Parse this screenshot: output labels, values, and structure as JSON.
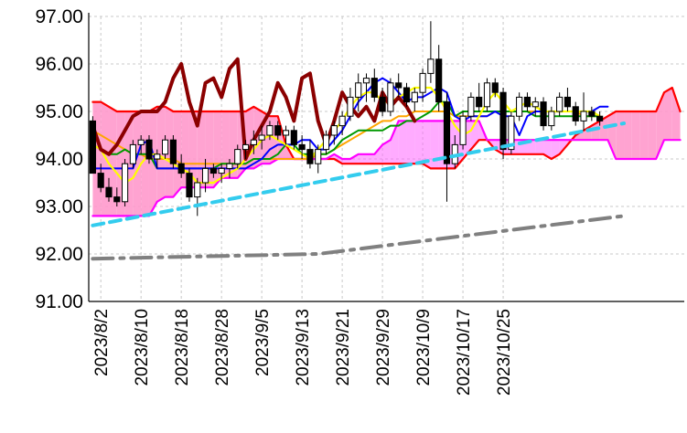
{
  "chart_data": {
    "type": "candlestick",
    "title": "",
    "xlabel": "",
    "ylabel": "",
    "ylim": [
      91.0,
      97.0
    ],
    "grid": true,
    "y_ticks": [
      "97.00",
      "96.00",
      "95.00",
      "94.00",
      "93.00",
      "92.00",
      "91.00"
    ],
    "x_ticks": [
      "2023/8/2",
      "2023/8/10",
      "2023/8/18",
      "2023/8/28",
      "2023/9/5",
      "2023/9/13",
      "2023/9/21",
      "2023/9/29",
      "2023/10/9",
      "2023/10/17",
      "2023/10/25"
    ],
    "colors": {
      "grid": "#c8c8c8",
      "axis": "#000000",
      "cloud_bull_fill": "#ff99cc",
      "cloud_bear_fill": "#ff66ff",
      "span_a": "#ff0000",
      "span_b": "#ff00ff",
      "lagging": "#8b0000",
      "conversion": "#0000ff",
      "base": "#009900",
      "short_ma": "#ffff00",
      "long_ma": "#ffa500",
      "trend_cyan": "#33ccee",
      "trend_gray": "#808080",
      "bull_candle": "#ffffff",
      "bear_candle": "#000000"
    },
    "candles_ohlc": [
      [
        94.8,
        94.9,
        93.7,
        93.7
      ],
      [
        93.7,
        93.9,
        93.3,
        93.4
      ],
      [
        93.4,
        93.6,
        93.1,
        93.2
      ],
      [
        93.2,
        93.4,
        93.0,
        93.1
      ],
      [
        93.1,
        94.0,
        93.0,
        93.9
      ],
      [
        93.9,
        94.4,
        93.8,
        94.3
      ],
      [
        94.3,
        94.5,
        94.1,
        94.4
      ],
      [
        94.4,
        94.5,
        93.9,
        94.0
      ],
      [
        94.0,
        94.2,
        93.8,
        94.1
      ],
      [
        94.1,
        94.5,
        94.0,
        94.4
      ],
      [
        94.4,
        94.5,
        93.8,
        93.9
      ],
      [
        93.9,
        94.1,
        93.6,
        93.7
      ],
      [
        93.7,
        93.8,
        93.1,
        93.2
      ],
      [
        93.2,
        93.6,
        92.8,
        93.5
      ],
      [
        93.5,
        94.0,
        93.3,
        93.8
      ],
      [
        93.8,
        93.9,
        93.6,
        93.7
      ],
      [
        93.7,
        93.9,
        93.5,
        93.8
      ],
      [
        93.8,
        94.0,
        93.6,
        93.9
      ],
      [
        93.9,
        94.3,
        93.8,
        94.2
      ],
      [
        94.2,
        94.4,
        94.0,
        94.3
      ],
      [
        94.3,
        94.6,
        94.1,
        94.4
      ],
      [
        94.4,
        94.7,
        94.2,
        94.5
      ],
      [
        94.5,
        94.8,
        94.4,
        94.7
      ],
      [
        94.7,
        94.8,
        94.4,
        94.5
      ],
      [
        94.5,
        94.7,
        94.3,
        94.6
      ],
      [
        94.6,
        94.7,
        94.2,
        94.3
      ],
      [
        94.3,
        94.5,
        94.0,
        94.2
      ],
      [
        94.2,
        94.4,
        93.8,
        93.9
      ],
      [
        93.9,
        94.3,
        93.7,
        94.2
      ],
      [
        94.2,
        94.6,
        94.1,
        94.5
      ],
      [
        94.5,
        94.8,
        94.3,
        94.7
      ],
      [
        94.7,
        95.0,
        94.5,
        94.9
      ],
      [
        94.9,
        95.5,
        94.8,
        95.3
      ],
      [
        95.3,
        95.8,
        95.0,
        95.6
      ],
      [
        95.6,
        95.8,
        95.2,
        95.7
      ],
      [
        95.7,
        95.9,
        95.2,
        95.3
      ],
      [
        95.3,
        95.5,
        94.9,
        95.0
      ],
      [
        95.0,
        95.7,
        94.9,
        95.6
      ],
      [
        95.6,
        95.8,
        95.3,
        95.5
      ],
      [
        95.5,
        95.6,
        95.1,
        95.2
      ],
      [
        95.2,
        95.5,
        95.0,
        95.4
      ],
      [
        95.4,
        95.9,
        95.2,
        95.8
      ],
      [
        95.8,
        96.9,
        95.6,
        96.1
      ],
      [
        96.1,
        96.4,
        95.0,
        95.2
      ],
      [
        95.2,
        95.4,
        93.1,
        93.9
      ],
      [
        93.9,
        94.5,
        93.8,
        94.3
      ],
      [
        94.3,
        95.0,
        94.2,
        94.9
      ],
      [
        94.9,
        95.4,
        94.8,
        95.3
      ],
      [
        95.3,
        95.6,
        95.0,
        95.1
      ],
      [
        95.1,
        95.7,
        95.0,
        95.6
      ],
      [
        95.6,
        95.7,
        95.3,
        95.4
      ],
      [
        95.4,
        95.5,
        94.0,
        94.2
      ],
      [
        94.2,
        95.0,
        94.1,
        94.9
      ],
      [
        94.9,
        95.4,
        94.8,
        95.3
      ],
      [
        95.3,
        95.4,
        95.0,
        95.1
      ],
      [
        95.1,
        95.3,
        94.9,
        95.2
      ],
      [
        95.2,
        95.3,
        94.6,
        94.7
      ],
      [
        94.7,
        95.1,
        94.6,
        95.0
      ],
      [
        95.0,
        95.4,
        94.9,
        95.3
      ],
      [
        95.3,
        95.5,
        95.0,
        95.1
      ],
      [
        95.1,
        95.2,
        94.7,
        94.8
      ],
      [
        94.8,
        95.4,
        94.6,
        95.0
      ],
      [
        95.0,
        95.1,
        94.8,
        94.9
      ],
      [
        94.9,
        95.0,
        94.7,
        94.8
      ]
    ],
    "series": [
      {
        "key": "span_a",
        "start": 0,
        "values": [
          95.2,
          95.2,
          95.1,
          95.0,
          95.0,
          95.0,
          95.0,
          95.0,
          95.1,
          95.1,
          95.0,
          95.0,
          95.0,
          95.0,
          95.0,
          95.0,
          95.0,
          95.0,
          95.0,
          95.0,
          95.1,
          95.0,
          94.9,
          94.9,
          94.3,
          94.0,
          94.0,
          94.0,
          94.0,
          94.0,
          94.0,
          93.9,
          93.9,
          93.9,
          93.9,
          93.9,
          93.9,
          93.9,
          93.9,
          93.9,
          93.9,
          93.9,
          93.8,
          93.8,
          93.8,
          93.8,
          94.0,
          94.2,
          94.4,
          94.4,
          94.2,
          94.1,
          94.1,
          94.1,
          94.1,
          94.1,
          94.1,
          94.0,
          94.1,
          94.3,
          94.5,
          94.6,
          94.7,
          94.8,
          94.9,
          95.0,
          95.0,
          95.0,
          95.0,
          95.0,
          95.0,
          95.4,
          95.5,
          95.0
        ]
      },
      {
        "key": "span_b",
        "start": 0,
        "values": [
          92.8,
          92.8,
          92.8,
          92.8,
          92.8,
          92.8,
          92.8,
          92.8,
          93.1,
          93.2,
          93.2,
          93.4,
          93.4,
          93.4,
          93.4,
          93.4,
          93.6,
          93.6,
          93.6,
          93.8,
          93.8,
          93.9,
          93.9,
          94.0,
          94.0,
          94.0,
          94.0,
          94.0,
          94.0,
          94.0,
          94.1,
          94.0,
          94.0,
          94.1,
          94.1,
          94.1,
          94.3,
          94.4,
          94.8,
          94.8,
          94.8,
          94.8,
          94.8,
          94.8,
          94.8,
          94.8,
          94.8,
          94.8,
          94.8,
          94.4,
          94.4,
          94.4,
          94.4,
          94.4,
          94.4,
          94.4,
          94.4,
          94.4,
          94.4,
          94.4,
          94.4,
          94.4,
          94.4,
          94.4,
          94.4,
          94.0,
          94.0,
          94.0,
          94.0,
          94.0,
          94.0,
          94.4,
          94.4,
          94.4
        ]
      },
      {
        "key": "lagging",
        "start": 0,
        "values": [
          94.7,
          94.2,
          94.1,
          94.3,
          94.6,
          94.9,
          95.0,
          95.0,
          95.0,
          95.2,
          95.7,
          96.0,
          95.2,
          94.7,
          95.6,
          95.7,
          95.3,
          95.9,
          96.1,
          94.0,
          94.4,
          94.7,
          95.0,
          95.6,
          95.3,
          94.8,
          95.7,
          95.8,
          94.8,
          94.3,
          94.8,
          95.4,
          95.1,
          94.9,
          95.1,
          94.8,
          95.4,
          95.1,
          95.3,
          95.1,
          94.8
        ]
      },
      {
        "key": "conversion",
        "start": 0,
        "values": [
          93.8,
          93.8,
          93.8,
          93.8,
          93.8,
          93.8,
          94.3,
          94.4,
          93.8,
          93.8,
          93.8,
          93.8,
          93.8,
          93.8,
          93.8,
          93.8,
          93.8,
          93.8,
          93.8,
          93.8,
          93.9,
          94.0,
          94.2,
          94.3,
          94.3,
          94.3,
          94.4,
          94.4,
          94.2,
          94.2,
          94.4,
          94.6,
          94.9,
          95.2,
          95.4,
          95.6,
          95.7,
          95.6,
          95.4,
          95.2,
          95.3,
          95.3,
          95.4,
          95.5,
          95.4,
          94.9,
          94.8,
          94.9,
          94.9,
          94.9,
          95.0,
          94.9,
          94.9,
          94.5,
          94.9,
          95.0,
          95.0,
          95.0,
          95.0,
          95.0,
          95.0,
          95.0,
          95.0,
          95.1,
          95.1
        ]
      },
      {
        "key": "base",
        "start": 0,
        "values": [
          94.3,
          94.2,
          94.1,
          94.1,
          94.2,
          94.1,
          94.1,
          94.1,
          93.8,
          93.8,
          93.8,
          93.8,
          93.8,
          93.8,
          93.8,
          93.8,
          93.9,
          93.9,
          93.9,
          93.9,
          94.0,
          94.0,
          94.0,
          94.1,
          94.3,
          94.3,
          94.1,
          94.1,
          94.1,
          94.1,
          94.2,
          94.4,
          94.5,
          94.6,
          94.6,
          94.6,
          94.6,
          94.7,
          94.7,
          94.8,
          94.8,
          94.9,
          95.0,
          95.2,
          95.2,
          94.9,
          95.0,
          95.0,
          95.0,
          95.0,
          95.0,
          95.0,
          95.0,
          95.0,
          95.0,
          94.9,
          94.9,
          94.9,
          94.9,
          94.9,
          94.9,
          94.9,
          94.9,
          94.9
        ]
      },
      {
        "key": "short_ma",
        "start": 0,
        "values": [
          94.3,
          94.2,
          93.9,
          93.7,
          93.5,
          93.6,
          93.9,
          94.1,
          94.1,
          94.0,
          93.9,
          93.8,
          93.7,
          93.5,
          93.5,
          93.5,
          93.6,
          93.7,
          93.8,
          94.0,
          94.2,
          94.4,
          94.5,
          94.4,
          94.3,
          94.2,
          94.1,
          94.0,
          94.2,
          94.4,
          94.6,
          94.8,
          95.1,
          95.3,
          95.4,
          95.4,
          95.2,
          95.2,
          95.3,
          95.4,
          95.5,
          95.5,
          95.5,
          95.3,
          95.0,
          94.7,
          94.5,
          94.6,
          94.9,
          95.2,
          95.4,
          95.2,
          95.0,
          95.1,
          95.2,
          95.1,
          95.0,
          95.0,
          95.0,
          95.0,
          95.0,
          95.0,
          95.0,
          94.9
        ]
      },
      {
        "key": "long_ma",
        "start": 0,
        "values": [
          94.6,
          94.5,
          94.4,
          94.3,
          94.2,
          94.1,
          94.1,
          94.0,
          94.0,
          94.0,
          94.0,
          93.9,
          93.9,
          93.9,
          93.9,
          93.9,
          93.9,
          93.9,
          93.9,
          93.9,
          94.0,
          94.0,
          94.0,
          94.0,
          94.0,
          94.0,
          94.0,
          94.0,
          94.1,
          94.1,
          94.2,
          94.3,
          94.4,
          94.5,
          94.6,
          94.7,
          94.8,
          94.8,
          94.9,
          94.9,
          95.0,
          95.0,
          95.0,
          95.0,
          95.0,
          94.9,
          94.9,
          94.9,
          94.9,
          94.9,
          95.0,
          95.0,
          95.0,
          95.0,
          95.0,
          95.0,
          95.0,
          95.0,
          95.0,
          95.0,
          95.0,
          94.9,
          94.9,
          94.9
        ]
      },
      {
        "key": "trend_cyan",
        "start": 0,
        "values": [
          92.6,
          94.75
        ],
        "end": 66,
        "dash": true
      },
      {
        "key": "trend_gray",
        "start": 0,
        "values": [
          91.9,
          92.0,
          92.8
        ],
        "x": [
          0,
          28,
          66
        ],
        "dash": true
      }
    ]
  }
}
